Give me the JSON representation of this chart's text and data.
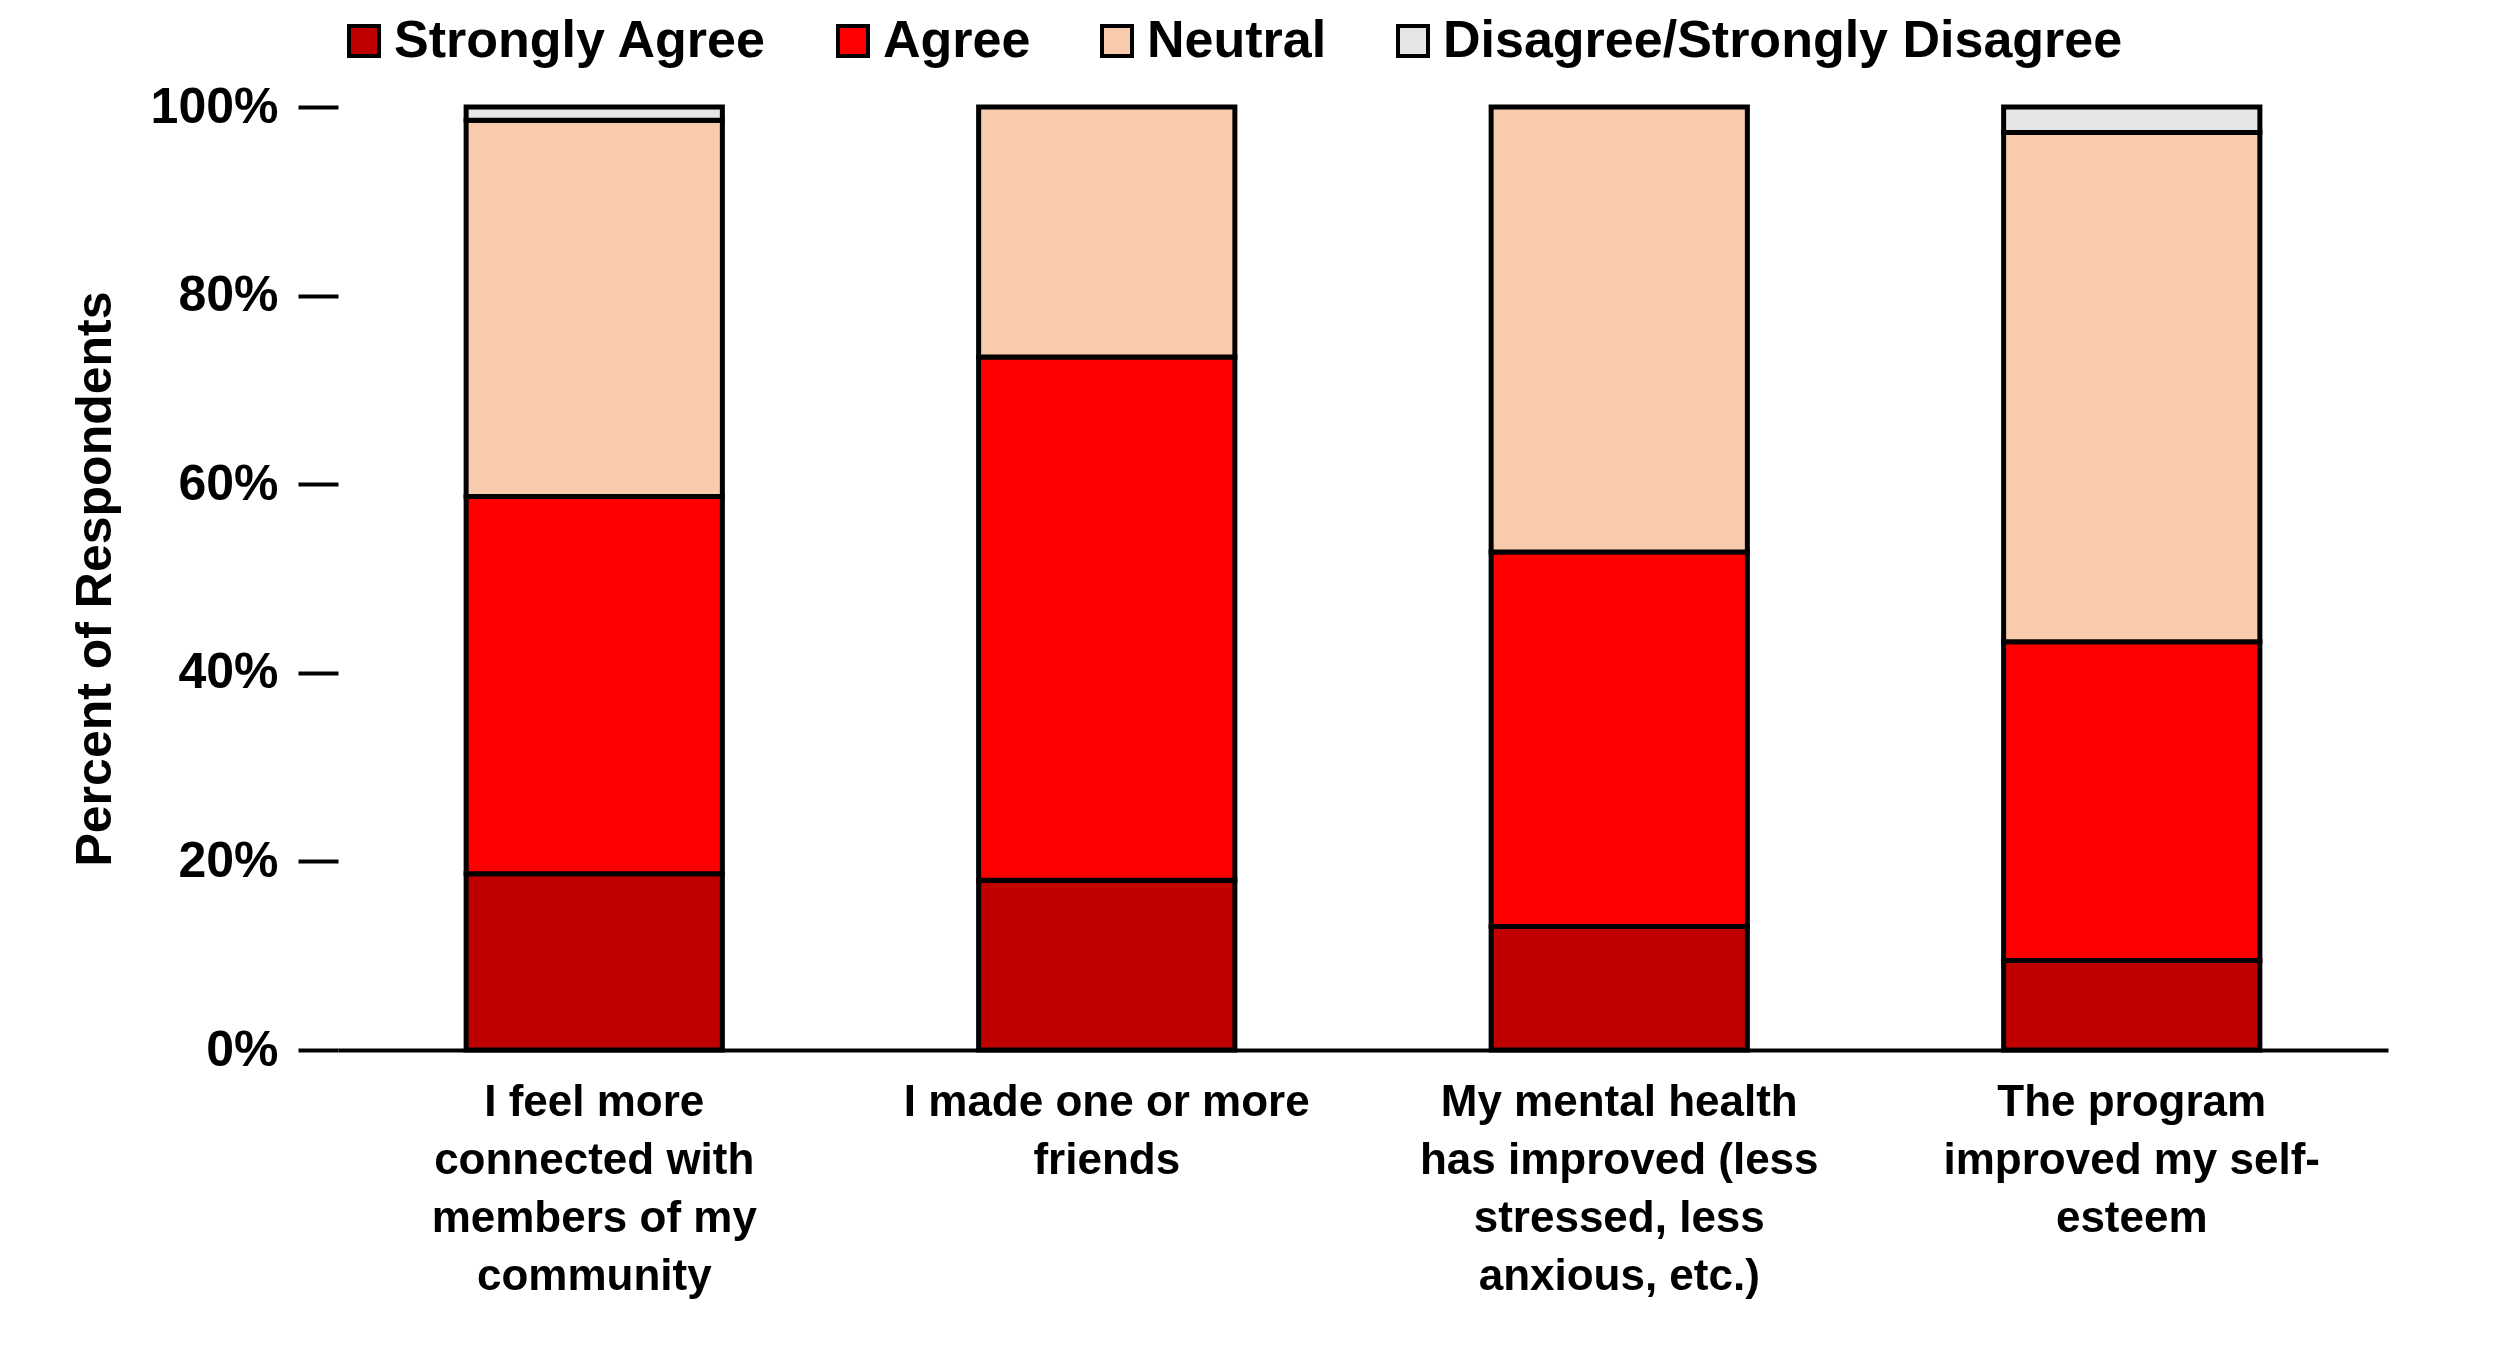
{
  "chart_data": {
    "type": "bar",
    "stacked": true,
    "ylabel": "Percent of Respondents",
    "categories": [
      "I feel more connected with members of my community",
      "I made one or more friends",
      "My mental health has improved (less stressed, less anxious, etc.)",
      "The program improved my self-esteem"
    ],
    "series": [
      {
        "name": "Strongly Agree",
        "color": "#c00000",
        "values": [
          18.7,
          18.0,
          13.1,
          9.5
        ]
      },
      {
        "name": "Agree",
        "color": "#ff0000",
        "values": [
          40.0,
          55.5,
          39.7,
          33.8
        ]
      },
      {
        "name": "Neutral",
        "color": "#f8cbad",
        "values": [
          39.9,
          26.5,
          47.2,
          54.0
        ]
      },
      {
        "name": "Disagree/Strongly Disagree",
        "color": "#e7e6e6",
        "values": [
          1.4,
          0,
          0,
          2.7
        ]
      }
    ],
    "ylim": [
      0,
      100
    ],
    "yticks": [
      {
        "value": 0,
        "label": "0%"
      },
      {
        "value": 20,
        "label": "20%"
      },
      {
        "value": 40,
        "label": "40%"
      },
      {
        "value": 60,
        "label": "60%"
      },
      {
        "value": 80,
        "label": "80%"
      },
      {
        "value": 100,
        "label": "100%"
      }
    ],
    "grid": false,
    "legend": "top"
  }
}
